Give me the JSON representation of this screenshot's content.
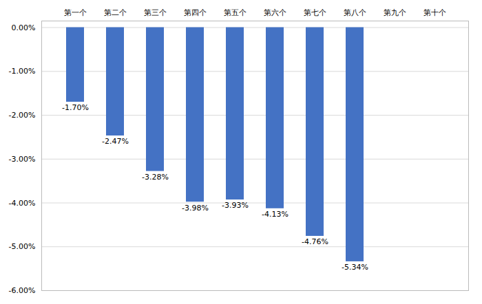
{
  "chart_data": {
    "type": "bar",
    "categories": [
      "第一个",
      "第二个",
      "第三个",
      "第四个",
      "第五个",
      "第六个",
      "第七个",
      "第八个",
      "第九个",
      "第十个"
    ],
    "values": [
      -1.7,
      -2.47,
      -3.28,
      -3.98,
      -3.93,
      -4.13,
      -4.76,
      -5.34,
      null,
      null
    ],
    "value_labels": [
      "-1.70%",
      "-2.47%",
      "-3.28%",
      "-3.98%",
      "-3.93%",
      "-4.13%",
      "-4.76%",
      "-5.34%",
      null,
      null
    ],
    "color": "#4472C4",
    "ylim": [
      -6.0,
      0.15
    ],
    "yticks": [
      {
        "value": 0.0,
        "label": "0.00%"
      },
      {
        "value": -1.0,
        "label": "-1.00%"
      },
      {
        "value": -2.0,
        "label": "-2.00%"
      },
      {
        "value": -3.0,
        "label": "-3.00%"
      },
      {
        "value": -4.0,
        "label": "-4.00%"
      },
      {
        "value": -5.0,
        "label": "-5.00%"
      },
      {
        "value": -6.0,
        "label": "-6.00%"
      }
    ],
    "grid": true,
    "data_labels": true
  }
}
